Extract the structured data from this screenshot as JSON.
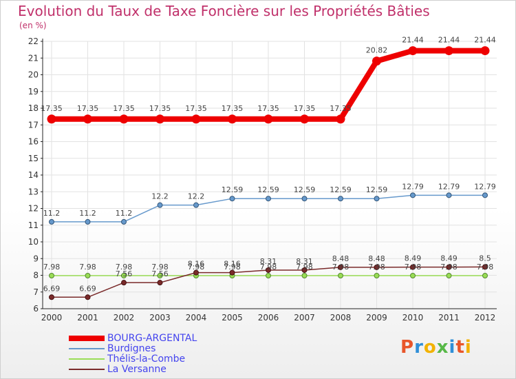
{
  "title": "Evolution du Taux de Taxe Foncière sur les Propriétés Bâties",
  "unit": "(en %)",
  "logo": {
    "text": "Proxiti",
    "colors": [
      "#e8562a",
      "#2f8fd8",
      "#f2b200",
      "#57b847",
      "#2f8fd8",
      "#e8562a",
      "#f2b200"
    ]
  },
  "chart_data": {
    "type": "line",
    "title": "Evolution du Taux de Taxe Foncière sur les Propriétés Bâties",
    "ylabel": "(en %)",
    "ylim": [
      6,
      22
    ],
    "yticks": [
      6,
      7,
      8,
      9,
      10,
      11,
      12,
      13,
      14,
      15,
      16,
      17,
      18,
      19,
      20,
      21,
      22
    ],
    "grid": true,
    "legend_position": "bottom-left",
    "x": [
      "2000",
      "2001",
      "2002",
      "2003",
      "2004",
      "2005",
      "2006",
      "2007",
      "2008",
      "2009",
      "2010",
      "2011",
      "2012"
    ],
    "series": [
      {
        "name": "BOURG-ARGENTAL",
        "color": "#ee0000",
        "label_color": "#4444ee",
        "values": [
          17.35,
          17.35,
          17.35,
          17.35,
          17.35,
          17.35,
          17.35,
          17.35,
          17.35,
          20.82,
          21.44,
          21.44,
          21.44
        ],
        "labels": [
          "17.35",
          "17.35",
          "17.35",
          "17.35",
          "17.35",
          "17.35",
          "17.35",
          "17.35",
          "17.35",
          "20.82",
          "21.44",
          "21.44",
          "21.44"
        ]
      },
      {
        "name": "Burdignes",
        "color": "#6699cc",
        "label_color": "#4444ee",
        "values": [
          11.2,
          11.2,
          11.2,
          12.2,
          12.2,
          12.59,
          12.59,
          12.59,
          12.59,
          12.59,
          12.79,
          12.79,
          12.79
        ],
        "labels": [
          "11.2",
          "11.2",
          "11.2",
          "12.2",
          "12.2",
          "12.59",
          "12.59",
          "12.59",
          "12.59",
          "12.59",
          "12.79",
          "12.79",
          "12.79"
        ]
      },
      {
        "name": "Thélis-la-Combe",
        "color": "#99dd55",
        "label_color": "#4444ee",
        "values": [
          7.98,
          7.98,
          7.98,
          7.98,
          7.98,
          7.98,
          7.98,
          7.98,
          7.98,
          7.98,
          7.98,
          7.98,
          7.98
        ],
        "labels": [
          "7.98",
          "7.98",
          "7.98",
          "7.98",
          "7.98",
          "7.98",
          "7.98",
          "7.98",
          "7.98",
          "7.98",
          "7.98",
          "7.98",
          "7.98"
        ]
      },
      {
        "name": "La Versanne",
        "color": "#7a2a2a",
        "label_color": "#4444ee",
        "values": [
          6.69,
          6.69,
          7.56,
          7.56,
          8.16,
          8.16,
          8.31,
          8.31,
          8.48,
          8.48,
          8.49,
          8.49,
          8.5
        ],
        "labels": [
          "6.69",
          "6.69",
          "7.56",
          "7.56",
          "8.16",
          "8.16",
          "8.31",
          "8.31",
          "8.48",
          "8.48",
          "8.49",
          "8.49",
          "8.5"
        ]
      }
    ]
  }
}
